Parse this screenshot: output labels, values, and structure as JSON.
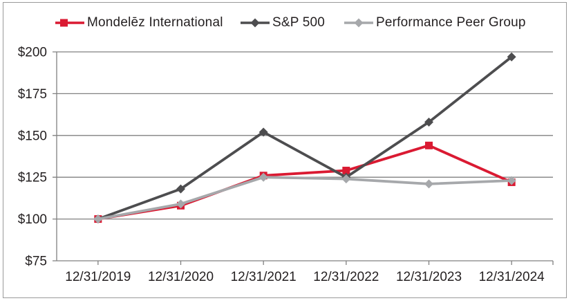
{
  "page": {
    "background": "#ffffff",
    "border_color": "#999999"
  },
  "legend": {
    "items": [
      {
        "label": "Mondelēz International",
        "color": "#DA1A32",
        "marker": "square"
      },
      {
        "label": "S&P 500",
        "color": "#4D4D4F",
        "marker": "diamond"
      },
      {
        "label": "Performance Peer Group",
        "color": "#A6A8AB",
        "marker": "diamond"
      }
    ]
  },
  "chart_data": {
    "type": "line",
    "title": "",
    "xlabel": "",
    "ylabel": "",
    "categories": [
      "12/31/2019",
      "12/31/2020",
      "12/31/2021",
      "12/31/2022",
      "12/31/2023",
      "12/31/2024"
    ],
    "series": [
      {
        "name": "Mondelēz International",
        "values": [
          100,
          108,
          126,
          129,
          144,
          122
        ],
        "color": "#DA1A32",
        "marker": "square"
      },
      {
        "name": "S&P 500",
        "values": [
          100,
          118,
          152,
          125,
          158,
          197
        ],
        "color": "#4D4D4F",
        "marker": "diamond"
      },
      {
        "name": "Performance Peer Group",
        "values": [
          100,
          109,
          125,
          124,
          121,
          123
        ],
        "color": "#A6A8AB",
        "marker": "diamond"
      }
    ],
    "y_ticks": [
      "$200",
      "$175",
      "$150",
      "$125",
      "$100",
      "$75"
    ],
    "y_tick_values": [
      200,
      175,
      150,
      125,
      100,
      75
    ],
    "ylim": [
      75,
      200
    ],
    "grid": true,
    "legend_position": "top",
    "axis_color": "#808080",
    "text_color": "#231F20"
  }
}
